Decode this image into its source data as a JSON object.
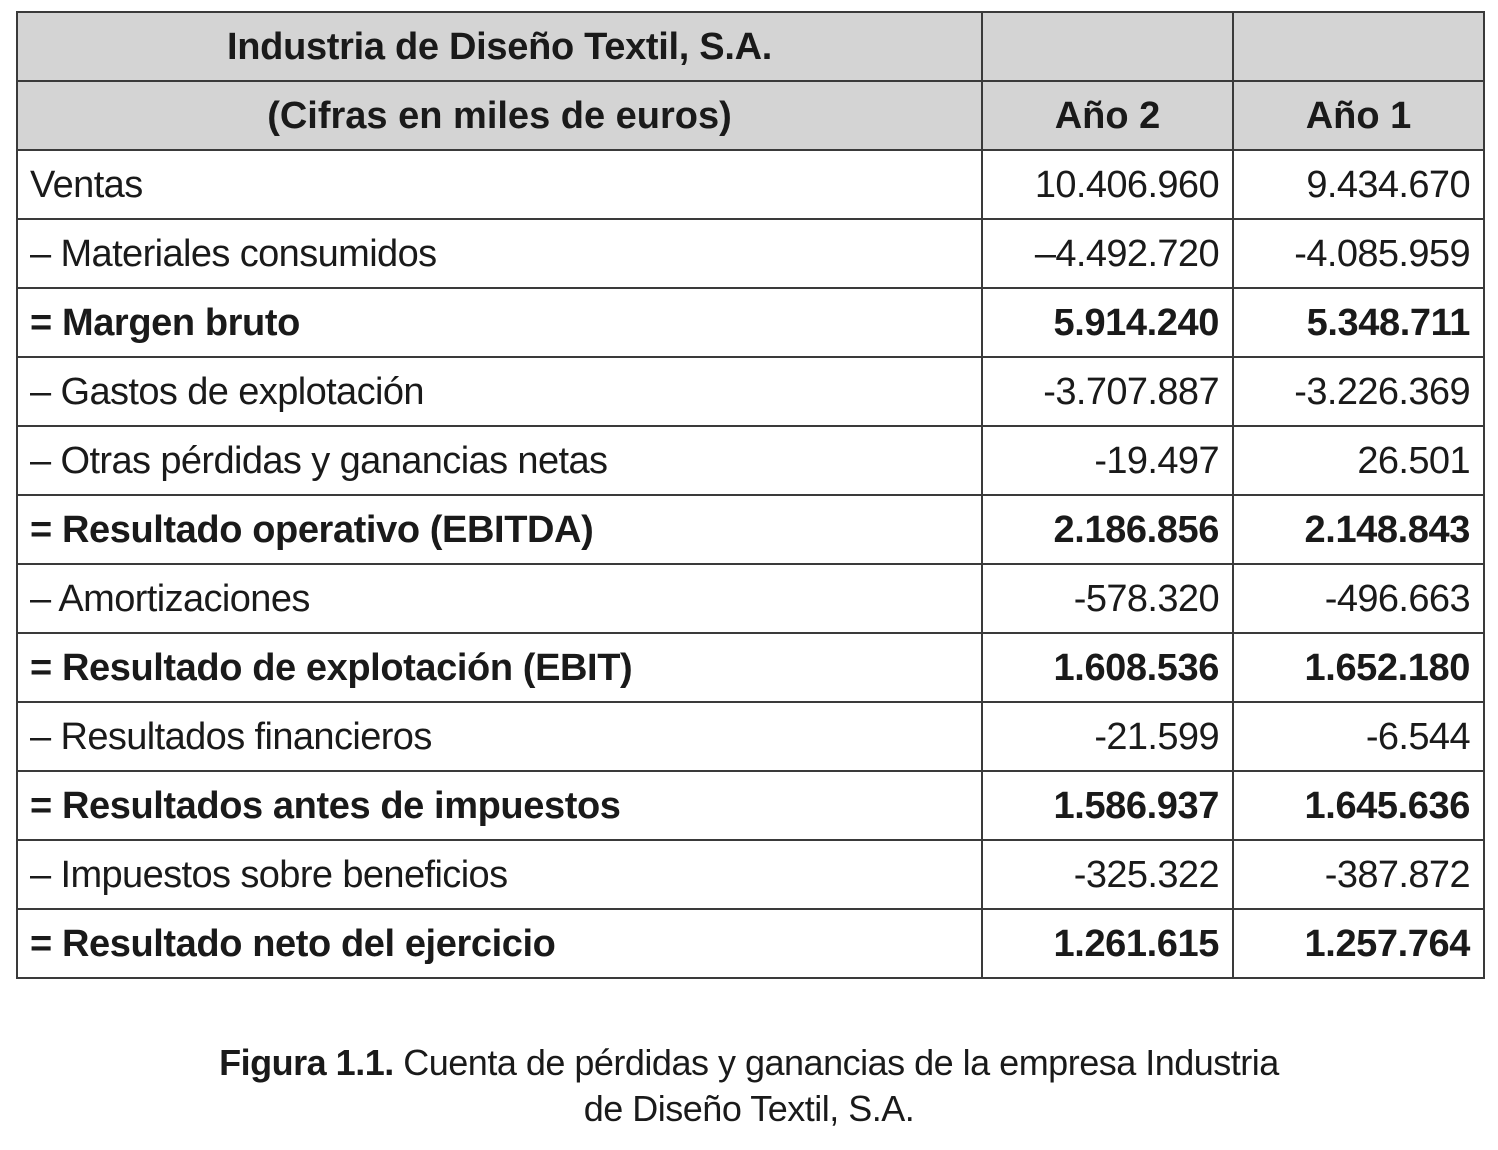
{
  "table": {
    "title": "Industria de Diseño Textil, S.A.",
    "subtitle": "(Cifras en miles de euros)",
    "col_year2": "Año 2",
    "col_year1": "Año 1",
    "rows": [
      {
        "label": "Ventas",
        "year2": "10.406.960",
        "year1": "9.434.670",
        "bold": false
      },
      {
        "label": "– Materiales consumidos",
        "year2": "–4.492.720",
        "year1": "-4.085.959",
        "bold": false
      },
      {
        "label": "= Margen bruto",
        "year2": "5.914.240",
        "year1": "5.348.711",
        "bold": true
      },
      {
        "label": "– Gastos de explotación",
        "year2": "-3.707.887",
        "year1": "-3.226.369",
        "bold": false
      },
      {
        "label": "– Otras pérdidas y ganancias netas",
        "year2": "-19.497",
        "year1": "26.501",
        "bold": false
      },
      {
        "label": "= Resultado operativo (EBITDA)",
        "year2": "2.186.856",
        "year1": "2.148.843",
        "bold": true
      },
      {
        "label": "– Amortizaciones",
        "year2": "-578.320",
        "year1": "-496.663",
        "bold": false
      },
      {
        "label": "= Resultado de explotación (EBIT)",
        "year2": "1.608.536",
        "year1": "1.652.180",
        "bold": true
      },
      {
        "label": "– Resultados financieros",
        "year2": "-21.599",
        "year1": "-6.544",
        "bold": false
      },
      {
        "label": "= Resultados antes de impuestos",
        "year2": "1.586.937",
        "year1": "1.645.636",
        "bold": true
      },
      {
        "label": "– Impuestos sobre beneficios",
        "year2": "-325.322",
        "year1": "-387.872",
        "bold": false
      },
      {
        "label": "= Resultado neto del ejercicio",
        "year2": "1.261.615",
        "year1": "1.257.764",
        "bold": true
      }
    ]
  },
  "caption": {
    "label": "Figura 1.1.",
    "line1": "Cuenta de pérdidas y ganancias de la empresa Industria",
    "line2": "de Diseño Textil, S.A."
  }
}
